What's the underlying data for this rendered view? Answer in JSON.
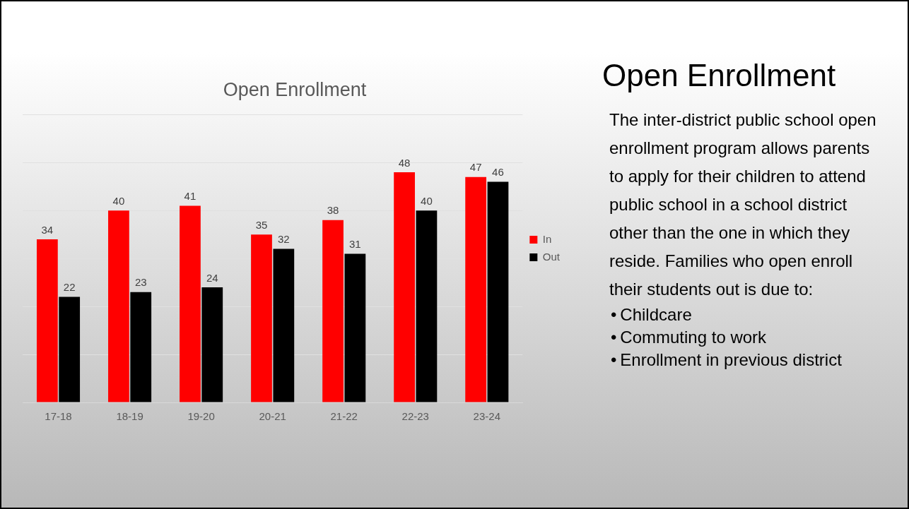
{
  "chart_data": [
    {
      "type": "bar",
      "title": "Open Enrollment",
      "categories": [
        "17-18",
        "18-19",
        "19-20",
        "20-21",
        "21-22",
        "22-23",
        "23-24"
      ],
      "series": [
        {
          "name": "In",
          "color": "#ff0000",
          "values": [
            34,
            40,
            41,
            35,
            38,
            48,
            47
          ]
        },
        {
          "name": "Out",
          "color": "#000000",
          "values": [
            22,
            23,
            24,
            32,
            31,
            40,
            46
          ]
        }
      ],
      "ylim": [
        0,
        60
      ],
      "tick_labels": "x",
      "grid": "y",
      "legend": "right",
      "data_labels": true
    },
    {
      "type": "other",
      "title": "Open Enrollment",
      "annotations": [
        "The inter-district public school open enrollment program allows parents to apply for their children to attend public school in a school district other than the one in which they reside. Families who open enroll their students out is due to:",
        "•\tChildcare",
        "•\tCommuting to work",
        "•\tEnrollment in previous district"
      ]
    }
  ]
}
